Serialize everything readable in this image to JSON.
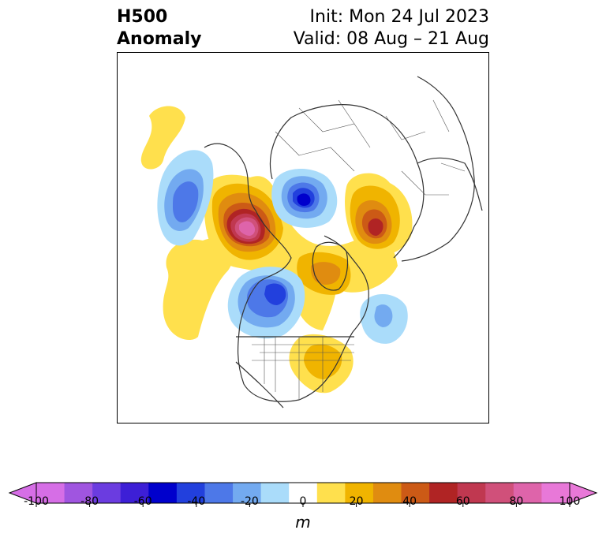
{
  "title": {
    "main_line1": "H500",
    "main_line2": "Anomaly",
    "init": "Init: Mon 24 Jul 2023",
    "valid": "Valid: 08 Aug – 21 Aug"
  },
  "colorbar": {
    "unit": "m",
    "ticks": [
      "-100",
      "-80",
      "-60",
      "-40",
      "-20",
      "0",
      "20",
      "40",
      "60",
      "80",
      "100"
    ],
    "min": -100,
    "max": 100,
    "step": 10,
    "colors": [
      "#d66ee6",
      "#a055e0",
      "#6b3ce0",
      "#3d1fd6",
      "#0000cc",
      "#2240dd",
      "#4d78e8",
      "#73aaf0",
      "#aadcfa",
      "#ffffff",
      "#ffe04d",
      "#f0b400",
      "#e08c10",
      "#cc5a16",
      "#b02424",
      "#c03850",
      "#d0507a",
      "#de64aa",
      "#e878d8"
    ],
    "extend": "both"
  },
  "legend_colors": {
    "positive_strong": "#e878d8",
    "positive": "#f0b400",
    "negative": "#0000cc",
    "negative_weak": "#aadcfa"
  }
}
